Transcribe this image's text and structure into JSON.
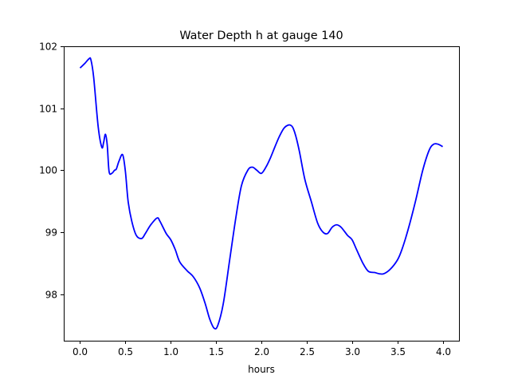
{
  "chart_data": {
    "type": "line",
    "title": "Water Depth h at gauge 140",
    "xlabel": "hours",
    "ylabel": "",
    "xlim": [
      -0.18,
      4.18
    ],
    "ylim": [
      97.25,
      102.0
    ],
    "xticks": [
      0.0,
      0.5,
      1.0,
      1.5,
      2.0,
      2.5,
      3.0,
      3.5,
      4.0
    ],
    "xtick_labels": [
      "0.0",
      "0.5",
      "1.0",
      "1.5",
      "2.0",
      "2.5",
      "3.0",
      "3.5",
      "4.0"
    ],
    "yticks": [
      98,
      99,
      100,
      101,
      102
    ],
    "ytick_labels": [
      "98",
      "99",
      "100",
      "101",
      "102"
    ],
    "grid": false,
    "series": [
      {
        "color": "#0000ff",
        "x": [
          0.0,
          0.05,
          0.1,
          0.12,
          0.15,
          0.2,
          0.24,
          0.26,
          0.28,
          0.3,
          0.32,
          0.35,
          0.38,
          0.4,
          0.43,
          0.47,
          0.5,
          0.53,
          0.57,
          0.62,
          0.68,
          0.72,
          0.78,
          0.85,
          0.88,
          0.95,
          1.0,
          1.05,
          1.1,
          1.18,
          1.25,
          1.32,
          1.38,
          1.43,
          1.48,
          1.52,
          1.58,
          1.65,
          1.72,
          1.78,
          1.85,
          1.9,
          1.95,
          2.0,
          2.05,
          2.1,
          2.15,
          2.2,
          2.25,
          2.3,
          2.33,
          2.35,
          2.38,
          2.42,
          2.48,
          2.55,
          2.62,
          2.68,
          2.73,
          2.78,
          2.83,
          2.88,
          2.95,
          3.0,
          3.05,
          3.12,
          3.18,
          3.25,
          3.3,
          3.35,
          3.42,
          3.5,
          3.55,
          3.62,
          3.7,
          3.78,
          3.85,
          3.9,
          3.95,
          4.0
        ],
        "values": [
          101.65,
          101.72,
          101.8,
          101.78,
          101.5,
          100.7,
          100.37,
          100.45,
          100.58,
          100.4,
          99.98,
          99.95,
          100.0,
          100.02,
          100.15,
          100.25,
          99.98,
          99.5,
          99.18,
          98.95,
          98.9,
          98.98,
          99.12,
          99.23,
          99.18,
          98.98,
          98.88,
          98.72,
          98.52,
          98.38,
          98.28,
          98.1,
          97.85,
          97.6,
          97.45,
          97.5,
          97.85,
          98.55,
          99.25,
          99.75,
          100.0,
          100.05,
          100.0,
          99.95,
          100.05,
          100.2,
          100.38,
          100.55,
          100.68,
          100.73,
          100.72,
          100.68,
          100.55,
          100.3,
          99.85,
          99.5,
          99.15,
          99.0,
          98.98,
          99.08,
          99.12,
          99.08,
          98.95,
          98.88,
          98.72,
          98.5,
          98.37,
          98.35,
          98.33,
          98.33,
          98.4,
          98.55,
          98.72,
          99.05,
          99.5,
          100.0,
          100.32,
          100.42,
          100.42,
          100.38
        ]
      }
    ]
  }
}
